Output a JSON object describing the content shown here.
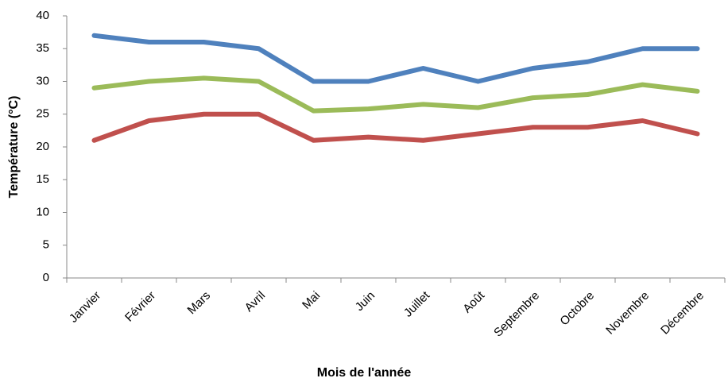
{
  "chart_data": {
    "type": "line",
    "x_label": "Mois de l'année",
    "y_label": "Température (°C)",
    "categories": [
      "Janvier",
      "Février",
      "Mars",
      "Avril",
      "Mai",
      "Juin",
      "Juillet",
      "Août",
      "Septembre",
      "Octobre",
      "Novembre",
      "Décembre"
    ],
    "series": [
      {
        "color": "#4f81bd",
        "values": [
          37,
          36,
          36,
          35,
          30,
          30,
          32,
          30,
          32,
          33,
          35,
          35
        ]
      },
      {
        "color": "#9bbb59",
        "values": [
          29,
          30,
          30.5,
          30,
          25.5,
          25.8,
          26.5,
          26,
          27.5,
          28,
          29.5,
          28.5
        ]
      },
      {
        "color": "#c0504d",
        "values": [
          21,
          24,
          25,
          25,
          21,
          21.5,
          21,
          22,
          23,
          23,
          24,
          22
        ]
      }
    ],
    "ylim": [
      0,
      40
    ],
    "yticks": [
      0,
      5,
      10,
      15,
      20,
      25,
      30,
      35,
      40
    ],
    "grid": false
  }
}
